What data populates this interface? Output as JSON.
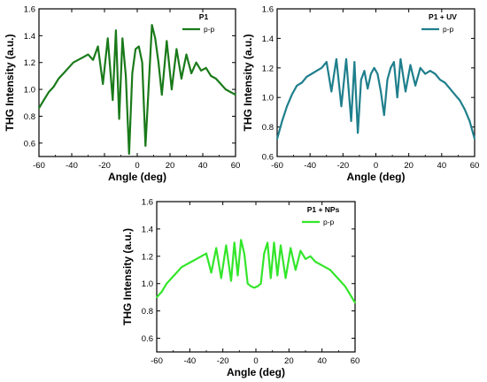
{
  "chart_data": [
    {
      "type": "line",
      "title": "",
      "legend_title": "P1",
      "legend_position": "top-right",
      "xlabel": "Angle (deg)",
      "ylabel": "THG Intensity (a.u.)",
      "xlim": [
        -60,
        60
      ],
      "ylim": [
        0.5,
        1.6
      ],
      "xticks": [
        -60,
        -40,
        -20,
        0,
        20,
        40,
        60
      ],
      "yticks": [
        0.6,
        0.8,
        1.0,
        1.2,
        1.4,
        1.6
      ],
      "xtick_labels": [
        "-60",
        "-40",
        "-20",
        "0",
        "20",
        "40",
        "60"
      ],
      "ytick_labels": [
        "0.6",
        "0.8",
        "1.0",
        "1.2",
        "1.4",
        "1.6"
      ],
      "grid": false,
      "color": "#1a7a1a",
      "series": [
        {
          "name": "p-p",
          "x": [
            -60,
            -57,
            -54,
            -51,
            -48,
            -45,
            -42,
            -39,
            -36,
            -33,
            -30,
            -27,
            -24,
            -21,
            -18,
            -15,
            -13,
            -11,
            -9,
            -7,
            -5,
            -3,
            -1,
            1,
            3,
            5,
            7,
            9,
            11,
            13,
            15,
            18,
            21,
            24,
            27,
            30,
            33,
            36,
            39,
            42,
            45,
            48,
            51,
            54,
            57,
            60
          ],
          "y": [
            0.86,
            0.92,
            0.98,
            1.02,
            1.08,
            1.12,
            1.16,
            1.2,
            1.22,
            1.24,
            1.26,
            1.22,
            1.32,
            1.04,
            1.38,
            0.92,
            1.44,
            0.78,
            1.38,
            1.1,
            0.52,
            1.12,
            1.3,
            1.32,
            1.2,
            0.58,
            1.02,
            1.48,
            1.38,
            1.2,
            0.96,
            1.36,
            1.0,
            1.3,
            1.08,
            1.26,
            1.12,
            1.2,
            1.14,
            1.16,
            1.1,
            1.08,
            1.04,
            1.0,
            0.98,
            0.96
          ]
        }
      ]
    },
    {
      "type": "line",
      "title": "",
      "legend_title": "P1 + UV",
      "legend_position": "top-right",
      "xlabel": "Angle (deg)",
      "ylabel": "THG Intensity (a.u.)",
      "xlim": [
        -60,
        60
      ],
      "ylim": [
        0.6,
        1.6
      ],
      "xticks": [
        -60,
        -40,
        -20,
        0,
        20,
        40,
        60
      ],
      "yticks": [
        0.6,
        0.8,
        1.0,
        1.2,
        1.4,
        1.6
      ],
      "xtick_labels": [
        "-60",
        "-40",
        "-20",
        "0",
        "20",
        "40",
        "60"
      ],
      "ytick_labels": [
        "0.6",
        "0.8",
        "1.0",
        "1.2",
        "1.4",
        "1.6"
      ],
      "grid": false,
      "color": "#1f7f8c",
      "series": [
        {
          "name": "p-p",
          "x": [
            -60,
            -57,
            -54,
            -51,
            -48,
            -45,
            -42,
            -39,
            -36,
            -33,
            -30,
            -27,
            -24,
            -21,
            -18,
            -15,
            -13,
            -11,
            -9,
            -7,
            -5,
            -3,
            -1,
            1,
            3,
            5,
            7,
            9,
            11,
            13,
            15,
            18,
            21,
            24,
            27,
            30,
            33,
            36,
            39,
            42,
            45,
            48,
            51,
            54,
            57,
            60
          ],
          "y": [
            0.72,
            0.84,
            0.94,
            1.02,
            1.08,
            1.1,
            1.14,
            1.16,
            1.18,
            1.2,
            1.24,
            1.04,
            1.26,
            0.94,
            1.26,
            0.84,
            1.24,
            0.76,
            1.12,
            1.18,
            1.06,
            1.16,
            1.2,
            1.16,
            1.04,
            0.88,
            1.12,
            1.2,
            1.24,
            1.0,
            1.26,
            1.04,
            1.22,
            1.08,
            1.2,
            1.16,
            1.18,
            1.16,
            1.12,
            1.1,
            1.06,
            1.02,
            0.98,
            0.92,
            0.84,
            0.72
          ]
        }
      ]
    },
    {
      "type": "line",
      "title": "",
      "legend_title": "P1 + NPs",
      "legend_position": "top-right",
      "xlabel": "Angle (deg)",
      "ylabel": "THG Intensity (a.u.)",
      "xlim": [
        -60,
        60
      ],
      "ylim": [
        0.5,
        1.6
      ],
      "xticks": [
        -60,
        -40,
        -20,
        0,
        20,
        40,
        60
      ],
      "yticks": [
        0.6,
        0.8,
        1.0,
        1.2,
        1.4,
        1.6
      ],
      "xtick_labels": [
        "-60",
        "-40",
        "-20",
        "0",
        "20",
        "40",
        "60"
      ],
      "ytick_labels": [
        "0.6",
        "0.8",
        "1.0",
        "1.2",
        "1.4",
        "1.6"
      ],
      "grid": false,
      "color": "#33e62a",
      "series": [
        {
          "name": "p-p",
          "x": [
            -60,
            -57,
            -54,
            -51,
            -48,
            -45,
            -42,
            -39,
            -36,
            -33,
            -30,
            -27,
            -24,
            -21,
            -18,
            -15,
            -13,
            -11,
            -9,
            -7,
            -5,
            -3,
            -1,
            1,
            3,
            5,
            7,
            9,
            11,
            13,
            15,
            18,
            21,
            24,
            27,
            30,
            33,
            36,
            39,
            42,
            45,
            48,
            51,
            54,
            57,
            60
          ],
          "y": [
            0.9,
            0.94,
            1.0,
            1.04,
            1.08,
            1.12,
            1.14,
            1.16,
            1.18,
            1.2,
            1.22,
            1.08,
            1.26,
            1.04,
            1.28,
            1.02,
            1.3,
            1.06,
            1.32,
            1.22,
            1.0,
            0.98,
            0.97,
            0.98,
            1.0,
            1.22,
            1.3,
            1.04,
            1.3,
            1.06,
            1.28,
            1.04,
            1.26,
            1.1,
            1.24,
            1.18,
            1.2,
            1.16,
            1.14,
            1.12,
            1.1,
            1.06,
            1.02,
            0.98,
            0.92,
            0.86
          ]
        }
      ]
    }
  ]
}
